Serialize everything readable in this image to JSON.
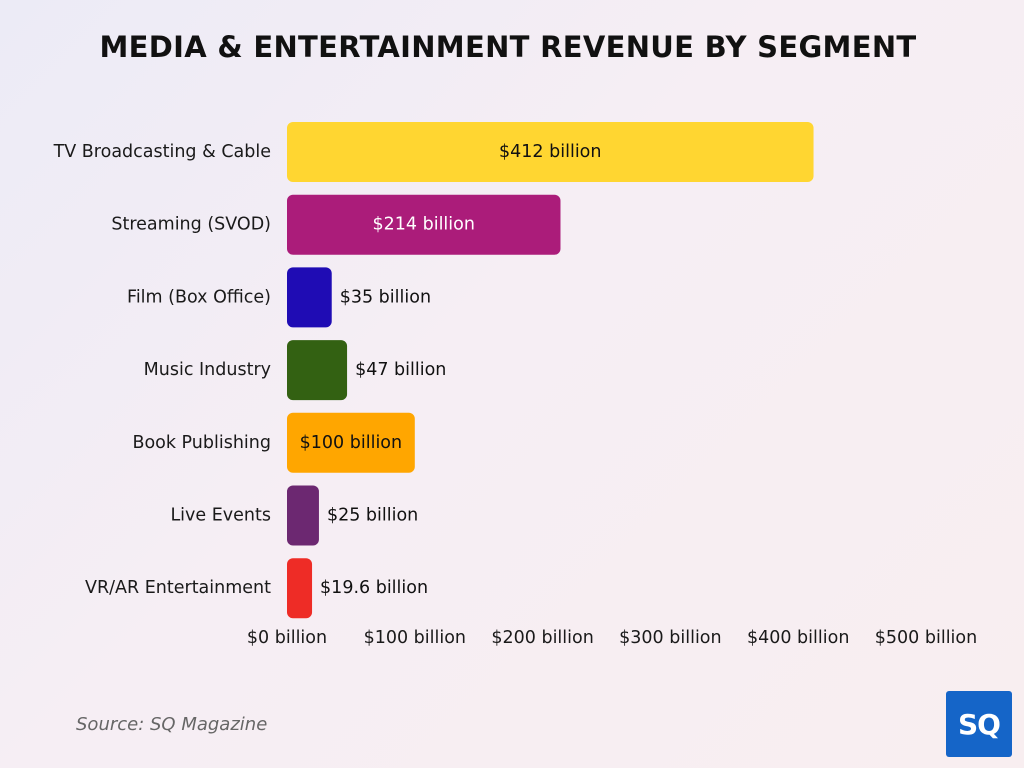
{
  "chart_data": {
    "type": "bar",
    "orientation": "horizontal",
    "title": "MEDIA & ENTERTAINMENT REVENUE BY SEGMENT",
    "categories": [
      "TV Broadcasting & Cable",
      "Streaming (SVOD)",
      "Film (Box Office)",
      "Music Industry",
      "Book Publishing",
      "Live Events",
      "VR/AR Entertainment"
    ],
    "values": [
      412,
      214,
      35,
      47,
      100,
      25,
      19.6
    ],
    "value_labels": [
      "$412 billion",
      "$214 billion",
      "$35 billion",
      "$47 billion",
      "$100 billion",
      "$25 billion",
      "$19.6 billion"
    ],
    "colors": [
      "#ffd631",
      "#ab1c7a",
      "#1f0cb4",
      "#336112",
      "#ffa600",
      "#6c2871",
      "#ee2c26"
    ],
    "label_colors": [
      "#111111",
      "#ffffff",
      "#111111",
      "#111111",
      "#111111",
      "#111111",
      "#111111"
    ],
    "label_inside": [
      true,
      true,
      false,
      false,
      true,
      false,
      false
    ],
    "xlim": [
      0,
      500
    ],
    "xticks": [
      0,
      100,
      200,
      300,
      400,
      500
    ],
    "xtick_labels": [
      "$0 billion",
      "$100 billion",
      "$200 billion",
      "$300 billion",
      "$400 billion",
      "$500 billion"
    ],
    "xlabel": "",
    "ylabel": "",
    "grid": false,
    "legend": "none"
  },
  "source": "Source: SQ Magazine",
  "logo": "SQ"
}
